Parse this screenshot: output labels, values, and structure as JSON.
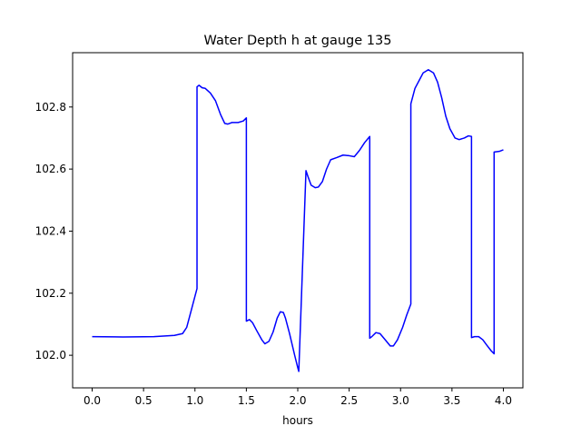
{
  "chart_data": {
    "type": "line",
    "title": "Water Depth h at gauge 135",
    "xlabel": "hours",
    "ylabel": "",
    "xlim": [
      -0.19,
      4.19
    ],
    "ylim": [
      101.895,
      102.975
    ],
    "x_ticks": [
      0.0,
      0.5,
      1.0,
      1.5,
      2.0,
      2.5,
      3.0,
      3.5,
      4.0
    ],
    "x_tick_labels": [
      "0.0",
      "0.5",
      "1.0",
      "1.5",
      "2.0",
      "2.5",
      "3.0",
      "3.5",
      "4.0"
    ],
    "y_ticks": [
      102.0,
      102.2,
      102.4,
      102.6,
      102.8
    ],
    "y_tick_labels": [
      "102.0",
      "102.2",
      "102.4",
      "102.6",
      "102.8"
    ],
    "grid": false,
    "legend": "none",
    "series": [
      {
        "color": "#0000ff",
        "points": [
          [
            0.0,
            102.06
          ],
          [
            0.3,
            102.059
          ],
          [
            0.6,
            102.06
          ],
          [
            0.8,
            102.064
          ],
          [
            0.88,
            102.07
          ],
          [
            0.92,
            102.09
          ],
          [
            0.96,
            102.14
          ],
          [
            1.0,
            102.19
          ],
          [
            1.02,
            102.215
          ],
          [
            1.02,
            102.865
          ],
          [
            1.04,
            102.87
          ],
          [
            1.07,
            102.862
          ],
          [
            1.1,
            102.86
          ],
          [
            1.15,
            102.845
          ],
          [
            1.2,
            102.82
          ],
          [
            1.25,
            102.775
          ],
          [
            1.29,
            102.747
          ],
          [
            1.32,
            102.745
          ],
          [
            1.36,
            102.75
          ],
          [
            1.42,
            102.75
          ],
          [
            1.47,
            102.755
          ],
          [
            1.5,
            102.765
          ],
          [
            1.5,
            102.11
          ],
          [
            1.53,
            102.115
          ],
          [
            1.56,
            102.105
          ],
          [
            1.6,
            102.08
          ],
          [
            1.65,
            102.05
          ],
          [
            1.68,
            102.037
          ],
          [
            1.72,
            102.045
          ],
          [
            1.76,
            102.075
          ],
          [
            1.8,
            102.12
          ],
          [
            1.83,
            102.14
          ],
          [
            1.86,
            102.138
          ],
          [
            1.88,
            102.12
          ],
          [
            1.92,
            102.07
          ],
          [
            1.97,
            102.0
          ],
          [
            2.0,
            101.96
          ],
          [
            2.01,
            101.948
          ],
          [
            2.08,
            102.595
          ],
          [
            2.1,
            102.575
          ],
          [
            2.13,
            102.548
          ],
          [
            2.17,
            102.54
          ],
          [
            2.2,
            102.542
          ],
          [
            2.24,
            102.56
          ],
          [
            2.28,
            102.6
          ],
          [
            2.32,
            102.63
          ],
          [
            2.38,
            102.637
          ],
          [
            2.44,
            102.645
          ],
          [
            2.5,
            102.643
          ],
          [
            2.55,
            102.64
          ],
          [
            2.6,
            102.66
          ],
          [
            2.65,
            102.685
          ],
          [
            2.7,
            102.705
          ],
          [
            2.7,
            102.055
          ],
          [
            2.72,
            102.06
          ],
          [
            2.76,
            102.073
          ],
          [
            2.8,
            102.07
          ],
          [
            2.85,
            102.05
          ],
          [
            2.9,
            102.03
          ],
          [
            2.93,
            102.03
          ],
          [
            2.97,
            102.05
          ],
          [
            3.02,
            102.09
          ],
          [
            3.06,
            102.13
          ],
          [
            3.1,
            102.165
          ],
          [
            3.1,
            102.81
          ],
          [
            3.14,
            102.86
          ],
          [
            3.18,
            102.885
          ],
          [
            3.22,
            102.91
          ],
          [
            3.27,
            102.92
          ],
          [
            3.32,
            102.91
          ],
          [
            3.36,
            102.88
          ],
          [
            3.4,
            102.83
          ],
          [
            3.44,
            102.77
          ],
          [
            3.48,
            102.73
          ],
          [
            3.53,
            102.7
          ],
          [
            3.57,
            102.695
          ],
          [
            3.62,
            102.7
          ],
          [
            3.66,
            102.707
          ],
          [
            3.69,
            102.705
          ],
          [
            3.69,
            102.057
          ],
          [
            3.72,
            102.06
          ],
          [
            3.76,
            102.06
          ],
          [
            3.8,
            102.05
          ],
          [
            3.84,
            102.032
          ],
          [
            3.88,
            102.015
          ],
          [
            3.91,
            102.005
          ],
          [
            3.91,
            102.655
          ],
          [
            3.96,
            102.657
          ],
          [
            4.0,
            102.662
          ]
        ]
      }
    ]
  }
}
